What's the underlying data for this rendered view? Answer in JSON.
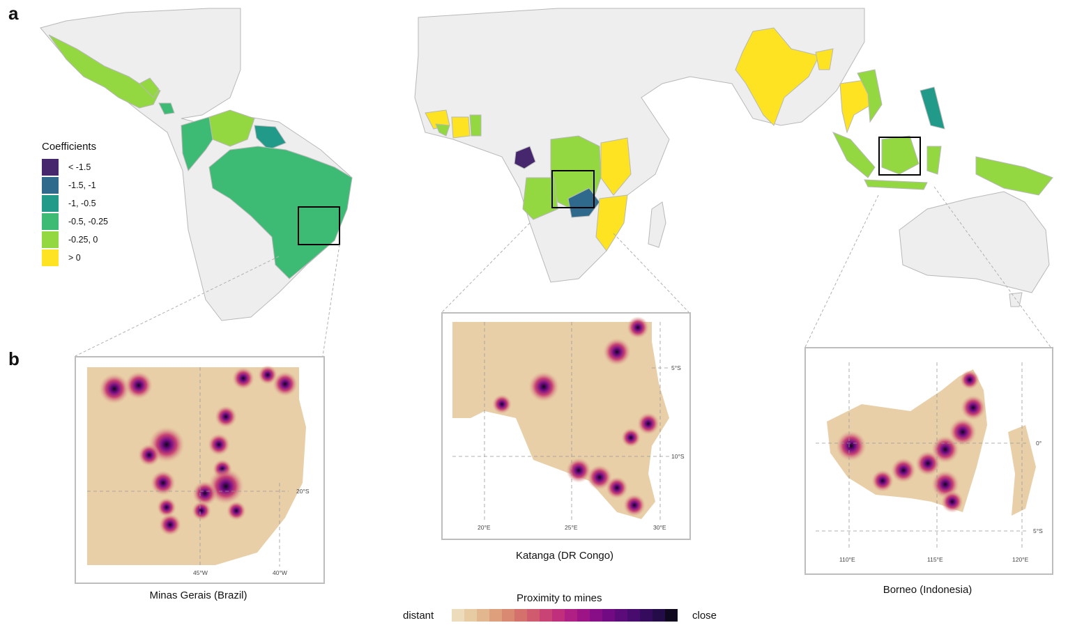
{
  "panels": {
    "a": "a",
    "b": "b"
  },
  "legend": {
    "title": "Coefficients",
    "items": [
      {
        "label": "< -1.5",
        "color": "#46266c"
      },
      {
        "label": "-1.5, -1",
        "color": "#2f6a8c"
      },
      {
        "label": "-1, -0.5",
        "color": "#229a8a"
      },
      {
        "label": "-0.5, -0.25",
        "color": "#3dbb75"
      },
      {
        "label": "-0.25, 0",
        "color": "#93d741"
      },
      {
        "label": "> 0",
        "color": "#fde321"
      }
    ]
  },
  "insets": [
    {
      "caption": "Minas Gerais (Brazil)",
      "ticks_x": [
        "45°W",
        "40°W"
      ],
      "ticks_y": [
        "20°S"
      ]
    },
    {
      "caption": "Katanga (DR Congo)",
      "ticks_x": [
        "20°E",
        "25°E",
        "30°E"
      ],
      "ticks_y": [
        "5°S",
        "10°S"
      ]
    },
    {
      "caption": "Borneo (Indonesia)",
      "ticks_x": [
        "110°E",
        "115°E",
        "120°E"
      ],
      "ticks_y": [
        "0°",
        "5°S"
      ]
    }
  ],
  "proximity": {
    "title": "Proximity to mines",
    "low_label": "distant",
    "high_label": "close",
    "colors": [
      "#ecdcbc",
      "#e6cba3",
      "#e2b78f",
      "#de9f7c",
      "#d98871",
      "#d5716d",
      "#d05a6e",
      "#c94474",
      "#bf2f7c",
      "#b01f83",
      "#9d1486",
      "#880e87",
      "#720b83",
      "#5c0b7b",
      "#480c6e",
      "#350c5d",
      "#230c47",
      "#10081e"
    ]
  }
}
